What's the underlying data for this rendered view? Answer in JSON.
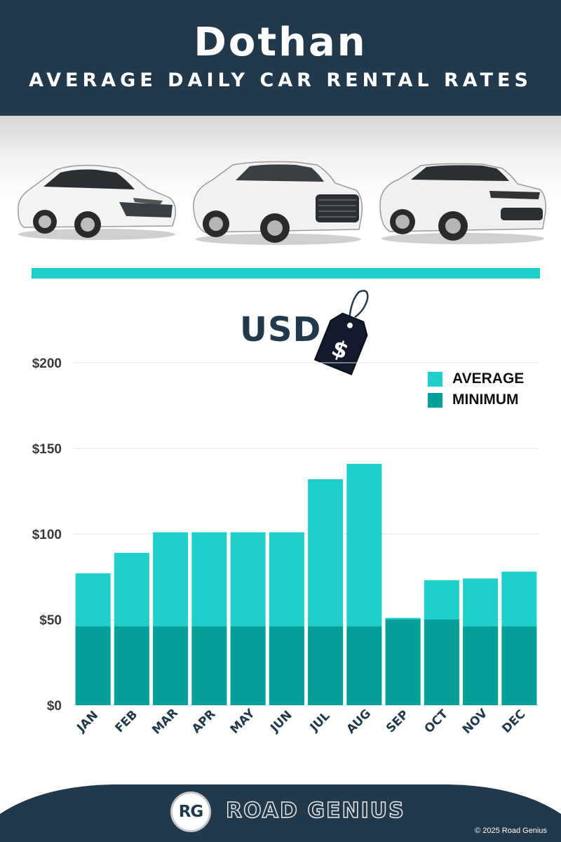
{
  "header": {
    "title": "Dothan",
    "subtitle": "AVERAGE DAILY CAR RENTAL RATES"
  },
  "currency_label": "USD",
  "tag_symbol": "$",
  "colors": {
    "navy": "#22394b",
    "average": "#1ecfcb",
    "minimum": "#059f99",
    "divider": "#1ecfcb"
  },
  "chart_data": {
    "type": "bar",
    "categories": [
      "JAN",
      "FEB",
      "MAR",
      "APR",
      "MAY",
      "JUN",
      "JUL",
      "AUG",
      "SEP",
      "OCT",
      "NOV",
      "DEC"
    ],
    "series": [
      {
        "name": "AVERAGE",
        "values": [
          77,
          89,
          101,
          101,
          101,
          101,
          132,
          141,
          51,
          73,
          74,
          78
        ]
      },
      {
        "name": "MINIMUM",
        "values": [
          46,
          46,
          46,
          46,
          46,
          46,
          46,
          46,
          50,
          50,
          46,
          46
        ]
      }
    ],
    "overlay": true,
    "y_ticks": [
      "$0",
      "$50",
      "$100",
      "$150",
      "$200"
    ],
    "ylim": [
      0,
      200
    ],
    "grid": true,
    "legend_position": "top-right"
  },
  "footer": {
    "logo_initials": "RG",
    "brand": "ROAD GENIUS",
    "copyright": "© 2025 Road Genius"
  }
}
